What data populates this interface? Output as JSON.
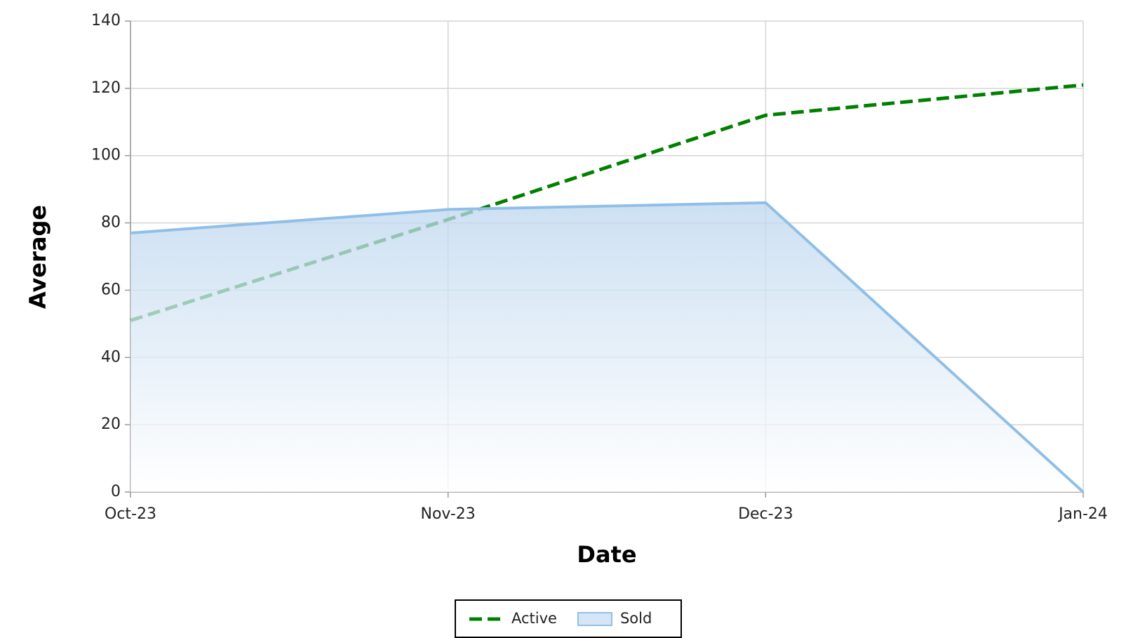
{
  "chart_data": {
    "type": "line",
    "x_label": "Date",
    "y_label": "Average",
    "categories": [
      "Oct-23",
      "Nov-23",
      "Dec-23",
      "Jan-24"
    ],
    "series": [
      {
        "name": "Active",
        "color": "#008000",
        "dashed": true,
        "values": [
          51,
          81,
          112,
          121
        ]
      },
      {
        "name": "Sold",
        "color": "#8fbfe8",
        "area": true,
        "values": [
          77,
          84,
          86,
          0
        ]
      }
    ],
    "ylim": [
      0,
      140
    ],
    "yticks": [
      0,
      20,
      40,
      60,
      80,
      100,
      120,
      140
    ],
    "grid": true,
    "legend": "bottom"
  }
}
